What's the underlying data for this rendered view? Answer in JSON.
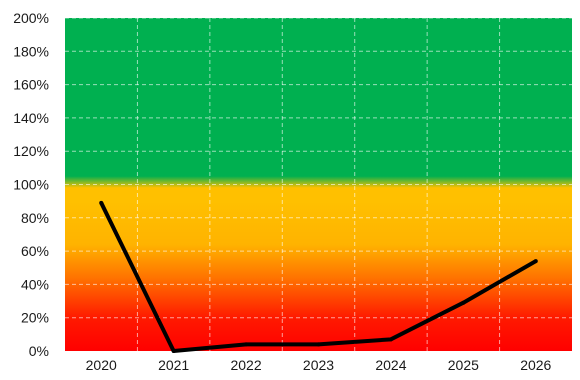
{
  "chart_data": {
    "type": "line",
    "title": "",
    "xlabel": "",
    "ylabel": "",
    "x": [
      "2020",
      "2021",
      "2022",
      "2023",
      "2024",
      "2025",
      "2026"
    ],
    "series": [
      {
        "values": [
          89,
          0,
          4,
          4,
          7,
          29,
          54
        ],
        "color": "#000000"
      }
    ],
    "ylim": [
      0,
      200
    ],
    "y_ticks": [
      0,
      20,
      40,
      60,
      80,
      100,
      120,
      140,
      160,
      180,
      200
    ],
    "y_tick_labels": [
      "0%",
      "20%",
      "40%",
      "60%",
      "80%",
      "100%",
      "120%",
      "140%",
      "160%",
      "180%",
      "200%"
    ],
    "grid": "dashed-white",
    "legend": "none",
    "background_bands": [
      {
        "from": 0,
        "to": 20,
        "color": "#ff0000"
      },
      {
        "from": 20,
        "to": 60,
        "color": "#ff8000"
      },
      {
        "from": 60,
        "to": 100,
        "color": "#ffc000"
      },
      {
        "from": 100,
        "to": 200,
        "color": "#00b050"
      }
    ]
  }
}
